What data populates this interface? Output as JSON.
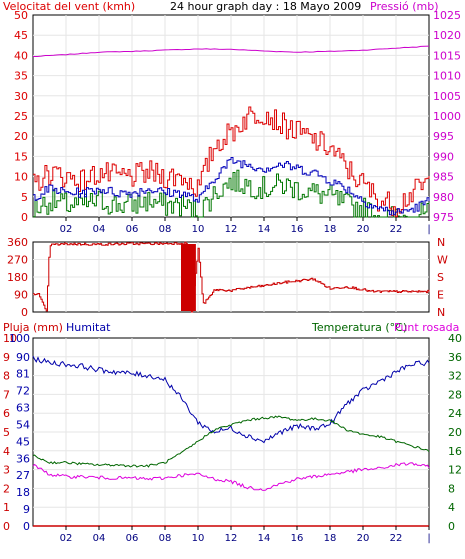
{
  "colors": {
    "wind": "#dd0000",
    "wind_avg": "#0000bb",
    "wind_min": "#007700",
    "pressure": "#cc00cc",
    "direction": "#cc0000",
    "humidity": "#0000aa",
    "temperature": "#006600",
    "dewpoint": "#dd00dd",
    "rain": "#cc0000",
    "hour_label": "#000080"
  },
  "chart_data": [
    {
      "type": "line",
      "title": "24 hour graph day : 18 Mayo 2009",
      "ylabel": "Velocitat del vent (kmh)",
      "y2label": "Pressió (mb)",
      "x_ticks": [
        "02",
        "04",
        "06",
        "08",
        "10",
        "12",
        "14",
        "16",
        "18",
        "20",
        "22",
        "|"
      ],
      "ylim": [
        0,
        50
      ],
      "yticks": [
        0,
        5,
        10,
        15,
        20,
        25,
        30,
        35,
        40,
        45,
        50
      ],
      "y2lim": [
        975,
        1025
      ],
      "y2ticks": [
        975,
        980,
        985,
        990,
        995,
        1000,
        1005,
        1010,
        1015,
        1020,
        1025
      ],
      "series": [
        {
          "key": "gust",
          "x": [
            0,
            1,
            2,
            3,
            4,
            5,
            6,
            7,
            8,
            9,
            10,
            11,
            12,
            13,
            14,
            15,
            16,
            17,
            18,
            19,
            20,
            21,
            22,
            23,
            24
          ],
          "values": [
            8,
            11,
            10,
            9,
            11,
            10,
            10,
            11,
            10,
            10,
            7,
            18,
            21,
            25,
            26,
            23,
            21,
            19,
            17,
            12,
            8,
            4,
            3,
            6,
            9
          ]
        },
        {
          "key": "avg",
          "x": [
            0,
            1,
            2,
            3,
            4,
            5,
            6,
            7,
            8,
            9,
            10,
            11,
            12,
            13,
            14,
            15,
            16,
            17,
            18,
            19,
            20,
            21,
            22,
            23,
            24
          ],
          "values": [
            5,
            7,
            6,
            6,
            7,
            6,
            6,
            7,
            6,
            6,
            4,
            10,
            14,
            13,
            12,
            13,
            12,
            11,
            9,
            7,
            4,
            2,
            1,
            2,
            4
          ]
        },
        {
          "key": "min",
          "x": [
            0,
            1,
            2,
            3,
            4,
            5,
            6,
            7,
            8,
            9,
            10,
            11,
            12,
            13,
            14,
            15,
            16,
            17,
            18,
            19,
            20,
            21,
            22,
            23,
            24
          ],
          "values": [
            2,
            4,
            3,
            3,
            4,
            3,
            3,
            4,
            3,
            3,
            1,
            6,
            9,
            8,
            7,
            8,
            7,
            6,
            5,
            3,
            2,
            0,
            0,
            0,
            1
          ]
        },
        {
          "key": "pressure",
          "x": [
            0,
            2,
            4,
            6,
            8,
            10,
            12,
            14,
            16,
            18,
            20,
            22,
            24
          ],
          "values": [
            1014.7,
            1015.2,
            1015.8,
            1016.0,
            1016.3,
            1016.6,
            1016.5,
            1016.1,
            1015.8,
            1016.0,
            1016.3,
            1016.8,
            1017.3
          ]
        }
      ]
    },
    {
      "type": "line",
      "ylabel": "",
      "x_ticks": [],
      "ylim": [
        0,
        360
      ],
      "yticks": [
        0,
        90,
        180,
        270,
        360
      ],
      "y2_labels": [
        "N",
        "W",
        "S",
        "E",
        "N"
      ],
      "series": [
        {
          "key": "direction",
          "x": [
            0,
            0.3,
            0.8,
            1,
            2,
            4,
            6,
            8,
            9.3,
            9.6,
            10,
            10.3,
            10.8,
            11,
            12,
            13,
            14,
            15,
            16,
            17,
            18,
            19,
            20,
            20.5,
            21,
            22,
            23,
            24
          ],
          "values": [
            95,
            95,
            0,
            345,
            350,
            348,
            351,
            352,
            355,
            0,
            330,
            40,
            90,
            115,
            110,
            125,
            135,
            150,
            160,
            170,
            120,
            130,
            115,
            105,
            105,
            105,
            105,
            105
          ]
        }
      ]
    },
    {
      "type": "line",
      "ylabel": "Pluja (mm)",
      "title2": "Humitat",
      "y3label": "Temperatura (°C)",
      "y4label": "Punt rosada",
      "x_ticks": [
        "02",
        "04",
        "06",
        "08",
        "10",
        "12",
        "14",
        "16",
        "18",
        "20",
        "22",
        "|"
      ],
      "left1_ticks": [
        0,
        1,
        2,
        3,
        4,
        5,
        6,
        7,
        8,
        9,
        10
      ],
      "left1_lim": [
        0,
        10
      ],
      "left2_ticks": [
        0,
        9,
        18,
        27,
        36,
        45,
        54,
        63,
        72,
        81,
        90,
        100
      ],
      "left2_lim": [
        0,
        100
      ],
      "right_ticks": [
        0,
        4,
        8,
        12,
        16,
        20,
        24,
        28,
        32,
        36,
        40
      ],
      "right_lim": [
        0,
        40
      ],
      "series": [
        {
          "key": "humidity",
          "x": [
            0,
            1,
            2,
            3,
            4,
            5,
            6,
            7,
            8,
            9,
            10,
            11,
            12,
            13,
            14,
            15,
            16,
            17,
            18,
            19,
            20,
            21,
            22,
            23,
            24
          ],
          "values": [
            89,
            87,
            86,
            85,
            83,
            82,
            81,
            80,
            78,
            68,
            55,
            50,
            52,
            48,
            45,
            50,
            53,
            52,
            54,
            65,
            72,
            77,
            82,
            86,
            87
          ]
        },
        {
          "key": "temperature",
          "x": [
            0,
            1,
            2,
            3,
            4,
            5,
            6,
            7,
            8,
            9,
            10,
            11,
            12,
            13,
            14,
            15,
            16,
            17,
            18,
            19,
            20,
            21,
            22,
            23,
            24
          ],
          "values": [
            15,
            13.5,
            13.5,
            13.2,
            13,
            13,
            12.8,
            12.8,
            13.5,
            15.5,
            18,
            20.5,
            21.5,
            22.5,
            23,
            23.2,
            22.5,
            22.8,
            22.5,
            20.5,
            19.5,
            19,
            18,
            17,
            16
          ]
        },
        {
          "key": "dewpoint",
          "x": [
            0,
            1,
            2,
            3,
            4,
            5,
            6,
            7,
            8,
            9,
            10,
            11,
            12,
            13,
            14,
            15,
            16,
            17,
            18,
            19,
            20,
            21,
            22,
            23,
            24
          ],
          "values": [
            13,
            11,
            10.5,
            10.5,
            10.3,
            10.2,
            10.2,
            10,
            10.2,
            10.8,
            11,
            10,
            9.5,
            8.2,
            7.8,
            9,
            10,
            10.5,
            11,
            11.5,
            12,
            12.2,
            13,
            13.3,
            12.5
          ]
        },
        {
          "key": "rain",
          "x": [
            0,
            24
          ],
          "values": [
            0,
            0
          ]
        }
      ]
    }
  ]
}
